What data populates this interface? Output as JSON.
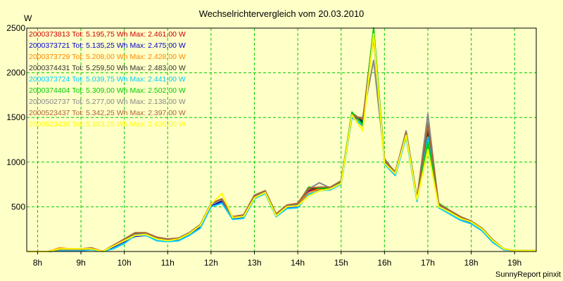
{
  "chart_data": {
    "type": "line",
    "title": "Wechselrichtervergleich vom 20.03.2010",
    "ylabel": "W",
    "xlabel": "",
    "ylim": [
      0,
      2500
    ],
    "yticks": [
      500,
      1000,
      1500,
      2000,
      2500
    ],
    "xrange": [
      7.75,
      19.5
    ],
    "xticks": [
      {
        "value": 8,
        "label": "8h"
      },
      {
        "value": 9,
        "label": "9h"
      },
      {
        "value": 10,
        "label": "10h"
      },
      {
        "value": 11,
        "label": "11h"
      },
      {
        "value": 12,
        "label": "12h"
      },
      {
        "value": 13,
        "label": "13h"
      },
      {
        "value": 14,
        "label": "14h"
      },
      {
        "value": 15,
        "label": "15h"
      },
      {
        "value": 16,
        "label": "16h"
      },
      {
        "value": 17,
        "label": "17h"
      },
      {
        "value": 18,
        "label": "18h"
      },
      {
        "value": 19,
        "label": "19h"
      }
    ],
    "grid": true,
    "legend_position": "top-left",
    "x": [
      7.75,
      8.0,
      8.25,
      8.5,
      8.75,
      9.0,
      9.25,
      9.5,
      9.75,
      10.0,
      10.25,
      10.5,
      10.75,
      11.0,
      11.25,
      11.5,
      11.75,
      12.0,
      12.25,
      12.5,
      12.75,
      13.0,
      13.25,
      13.5,
      13.75,
      14.0,
      14.25,
      14.5,
      14.75,
      15.0,
      15.25,
      15.5,
      15.75,
      16.0,
      16.25,
      16.5,
      16.75,
      17.0,
      17.25,
      17.5,
      17.75,
      18.0,
      18.25,
      18.5,
      18.75,
      19.0,
      19.25,
      19.5
    ],
    "series": [
      {
        "serial": "2000373813",
        "total": "5.195,75 Wh",
        "max": "2.461,00 W",
        "color": "#cc0000",
        "values": [
          0,
          0,
          0,
          10,
          20,
          20,
          30,
          0,
          60,
          120,
          180,
          190,
          150,
          130,
          140,
          200,
          280,
          520,
          570,
          370,
          390,
          610,
          660,
          410,
          500,
          520,
          680,
          700,
          700,
          770,
          1540,
          1450,
          2460,
          1000,
          870,
          1300,
          580,
          1350,
          520,
          450,
          380,
          330,
          250,
          120,
          30,
          10,
          10,
          10
        ]
      },
      {
        "serial": "2000373721",
        "total": "5.135,25 Wh",
        "max": "2.475,00 W",
        "color": "#0000cc",
        "values": [
          0,
          0,
          0,
          30,
          20,
          20,
          30,
          0,
          50,
          110,
          170,
          180,
          140,
          120,
          130,
          190,
          270,
          510,
          560,
          360,
          380,
          600,
          650,
          400,
          490,
          500,
          670,
          690,
          690,
          760,
          1530,
          1440,
          2475,
          990,
          860,
          1290,
          570,
          1310,
          510,
          440,
          370,
          320,
          240,
          110,
          30,
          10,
          10,
          10
        ]
      },
      {
        "serial": "2000373729",
        "total": "5.208,00 Wh",
        "max": "2.428,00 W",
        "color": "#ff8800",
        "values": [
          0,
          0,
          0,
          40,
          30,
          30,
          40,
          0,
          70,
          120,
          190,
          200,
          150,
          130,
          140,
          200,
          290,
          530,
          580,
          380,
          400,
          600,
          670,
          410,
          500,
          520,
          660,
          700,
          700,
          770,
          1520,
          1400,
          2428,
          1000,
          870,
          1300,
          590,
          1300,
          510,
          450,
          380,
          330,
          250,
          120,
          30,
          10,
          10,
          10
        ]
      },
      {
        "serial": "2000374431",
        "total": "5.259,50 Wh",
        "max": "2.483,00 W",
        "color": "#333333",
        "values": [
          0,
          0,
          0,
          20,
          20,
          20,
          30,
          0,
          60,
          130,
          200,
          200,
          150,
          130,
          140,
          210,
          290,
          520,
          580,
          380,
          400,
          620,
          670,
          420,
          510,
          530,
          700,
          710,
          700,
          780,
          1550,
          1460,
          2483,
          1010,
          880,
          1310,
          580,
          1340,
          530,
          460,
          380,
          330,
          250,
          120,
          30,
          10,
          10,
          10
        ]
      },
      {
        "serial": "2000373724",
        "total": "5.039,75 Wh",
        "max": "2.441,00 W",
        "color": "#00ccff",
        "values": [
          0,
          0,
          0,
          10,
          10,
          10,
          20,
          0,
          30,
          90,
          180,
          180,
          120,
          110,
          120,
          180,
          260,
          500,
          540,
          360,
          370,
          590,
          650,
          390,
          480,
          490,
          640,
          680,
          690,
          750,
          1500,
          1410,
          2441,
          980,
          850,
          1280,
          560,
          1280,
          490,
          420,
          350,
          310,
          230,
          100,
          20,
          10,
          10,
          10
        ]
      },
      {
        "serial": "2000374404",
        "total": "5.309,00 Wh",
        "max": "2.502,00 W",
        "color": "#00cc00",
        "values": [
          0,
          0,
          0,
          20,
          20,
          20,
          30,
          0,
          60,
          130,
          190,
          200,
          150,
          130,
          150,
          210,
          300,
          530,
          590,
          380,
          400,
          630,
          680,
          420,
          510,
          530,
          720,
          710,
          710,
          780,
          1560,
          1420,
          2502,
          1020,
          890,
          1320,
          590,
          1220,
          540,
          460,
          390,
          340,
          260,
          130,
          30,
          10,
          10,
          10
        ]
      },
      {
        "serial": "2000502737",
        "total": "5.277,00 Wh",
        "max": "2.138,00 W",
        "color": "#888888",
        "values": [
          0,
          0,
          0,
          20,
          20,
          20,
          30,
          0,
          60,
          120,
          190,
          200,
          150,
          130,
          140,
          200,
          290,
          520,
          580,
          380,
          400,
          620,
          670,
          420,
          510,
          530,
          700,
          770,
          710,
          790,
          1510,
          1500,
          2138,
          1040,
          880,
          1350,
          600,
          1540,
          510,
          450,
          380,
          330,
          250,
          120,
          30,
          10,
          10,
          10
        ]
      },
      {
        "serial": "2000523437",
        "total": "5.342,25 Wh",
        "max": "2.397,00 W",
        "color": "#aa6633",
        "values": [
          0,
          0,
          0,
          30,
          30,
          30,
          40,
          0,
          70,
          140,
          210,
          210,
          160,
          140,
          150,
          210,
          300,
          540,
          590,
          390,
          410,
          630,
          680,
          420,
          520,
          540,
          710,
          720,
          720,
          790,
          1530,
          1480,
          2397,
          1020,
          890,
          1330,
          600,
          1420,
          530,
          460,
          390,
          340,
          260,
          130,
          30,
          10,
          10,
          10
        ]
      },
      {
        "serial": "2000523438",
        "total": "5.183,25 Wh",
        "max": "2.436,00 W",
        "color": "#ffff00",
        "values": [
          0,
          0,
          0,
          30,
          30,
          30,
          30,
          0,
          60,
          120,
          180,
          190,
          140,
          120,
          140,
          200,
          290,
          530,
          650,
          380,
          390,
          600,
          660,
          400,
          500,
          510,
          620,
          680,
          700,
          760,
          1530,
          1350,
          2436,
          990,
          870,
          1300,
          580,
          1140,
          500,
          440,
          370,
          330,
          250,
          120,
          30,
          10,
          10,
          10
        ]
      }
    ],
    "legend_tot_prefix": "Tot:",
    "legend_max_prefix": "Max:"
  },
  "footer": "SunnyReport pinxit",
  "colors": {
    "background": "#ffffc8",
    "grid": "#00cc00"
  }
}
